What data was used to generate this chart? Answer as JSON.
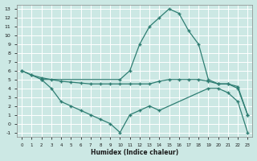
{
  "xlabel": "Humidex (Indice chaleur)",
  "bg_color": "#cce8e4",
  "grid_color": "#b0d8d2",
  "line_color": "#2e7d72",
  "xlim": [
    -0.5,
    23.5
  ],
  "ylim": [
    -1.5,
    13.5
  ],
  "xticks": [
    0,
    1,
    2,
    3,
    4,
    5,
    6,
    7,
    8,
    9,
    10,
    11,
    12,
    13,
    14,
    15,
    16,
    17,
    18,
    19,
    20,
    21,
    22,
    23
  ],
  "yticks": [
    -1,
    0,
    1,
    2,
    3,
    4,
    5,
    6,
    7,
    8,
    9,
    10,
    11,
    12,
    13
  ],
  "line1_x": [
    0,
    1,
    2,
    10,
    11,
    12,
    13,
    14,
    15,
    16,
    17,
    18,
    19,
    20,
    21,
    22,
    23
  ],
  "line1_y": [
    6,
    5.5,
    5,
    5,
    6,
    9,
    11,
    12,
    13,
    12.5,
    10.5,
    9,
    5,
    4.5,
    4.5,
    4,
    1
  ],
  "line2_x": [
    0,
    1,
    2,
    3,
    4,
    5,
    6,
    7,
    8,
    9,
    10,
    11,
    12,
    13,
    14,
    15,
    16,
    17,
    18,
    19,
    20,
    21,
    22,
    23
  ],
  "line2_y": [
    6,
    5.5,
    5.2,
    5,
    4.8,
    4.7,
    4.6,
    4.5,
    4.5,
    4.5,
    4.5,
    4.5,
    4.5,
    4.5,
    4.8,
    5,
    5,
    5,
    5,
    4.8,
    4.5,
    4.5,
    4.2,
    1
  ],
  "line3_x": [
    2,
    3,
    4,
    5,
    6,
    7,
    8,
    9,
    10,
    11,
    12,
    13,
    14,
    19,
    20,
    21,
    22,
    23
  ],
  "line3_y": [
    5,
    4,
    2.5,
    2,
    1.5,
    1,
    0.5,
    0,
    -1,
    1,
    1.5,
    2,
    1.5,
    4,
    4,
    3.5,
    2.5,
    -1
  ]
}
